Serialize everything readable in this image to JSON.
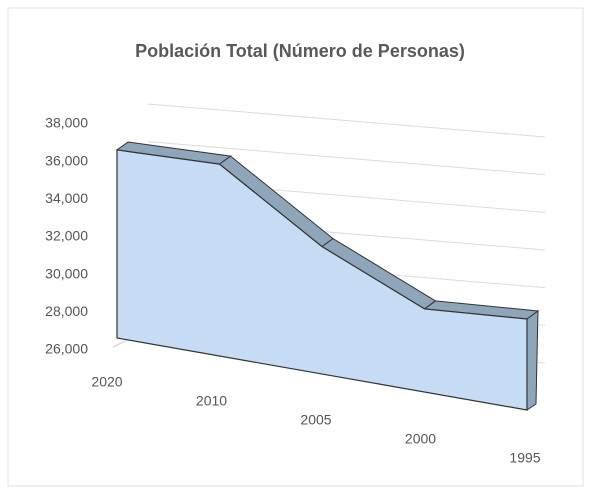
{
  "chart_data": {
    "type": "area",
    "title": "Población Total (Número de Personas)",
    "categories": [
      "2020",
      "2010",
      "2005",
      "2000",
      "1995"
    ],
    "values": [
      36400,
      34600,
      30800,
      28700,
      28600
    ],
    "color": "#c6dcf4",
    "top_color": "#8fa5ba",
    "ylim": [
      26000,
      38000
    ],
    "yticks": [
      {
        "value": 26000,
        "label": "26,000"
      },
      {
        "value": 28000,
        "label": "28,000"
      },
      {
        "value": 30000,
        "label": "30,000"
      },
      {
        "value": 32000,
        "label": "32,000"
      },
      {
        "value": 34000,
        "label": "34,000"
      },
      {
        "value": 36000,
        "label": "36,000"
      },
      {
        "value": 38000,
        "label": "38,000"
      }
    ],
    "grid": true
  }
}
